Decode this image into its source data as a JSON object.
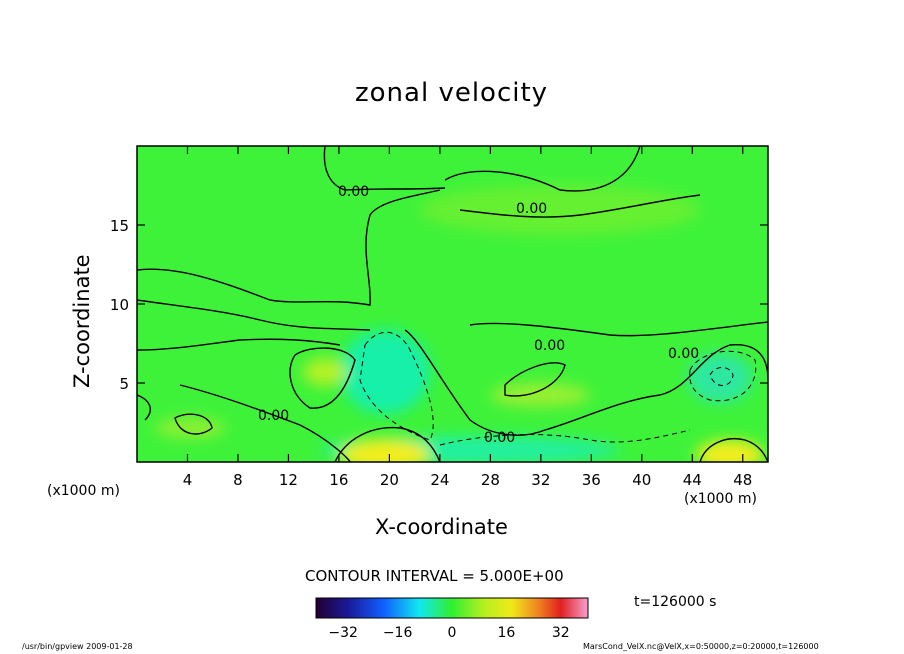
{
  "chart_data": {
    "type": "heatmap",
    "title": "zonal velocity",
    "xlabel": "X-coordinate",
    "ylabel": "Z-coordinate",
    "x_unit_label": "(x1000 m)",
    "xlim": [
      0,
      50
    ],
    "ylim": [
      0,
      20
    ],
    "x_ticks": [
      4,
      8,
      12,
      16,
      20,
      24,
      28,
      32,
      36,
      40,
      44,
      48
    ],
    "y_ticks": [
      5,
      10,
      15
    ],
    "contour_interval_text": "CONTOUR INTERVAL = 5.000E+00",
    "contour_labels": [
      "0.00",
      "0.00",
      "0.00",
      "0.00",
      "0.00",
      "0.00"
    ],
    "time_text": "t=126000 s",
    "colorbar": {
      "range": [
        -40,
        40
      ],
      "ticks": [
        -32,
        -16,
        0,
        16,
        32
      ],
      "colormap": "rainbow (black-blue-cyan-green-yellow-red-pink)"
    },
    "approximate_features": [
      {
        "x": 20,
        "z": 0.5,
        "value": 20,
        "kind": "positive max"
      },
      {
        "x": 46.5,
        "z": 0.5,
        "value": 18,
        "kind": "positive max"
      },
      {
        "x": 20,
        "z": 5.5,
        "value": -8,
        "kind": "negative min"
      },
      {
        "x": 46,
        "z": 5.5,
        "value": -10,
        "kind": "negative min"
      },
      {
        "x": 15.5,
        "z": 5.5,
        "value": 6,
        "kind": "positive max"
      },
      {
        "x": 34,
        "z": 5,
        "value": 5,
        "kind": "positive max"
      }
    ]
  },
  "footer": {
    "left": "/usr/bin/gpview   2009-01-28",
    "right": "MarsCond_VelX.nc@VelX,x=0:50000,z=0:20000,t=126000"
  },
  "colors": {
    "field_base": "#3ef23a",
    "positive": "#f2ee1a",
    "negative": "#18f0a8",
    "contour": "#000000"
  }
}
